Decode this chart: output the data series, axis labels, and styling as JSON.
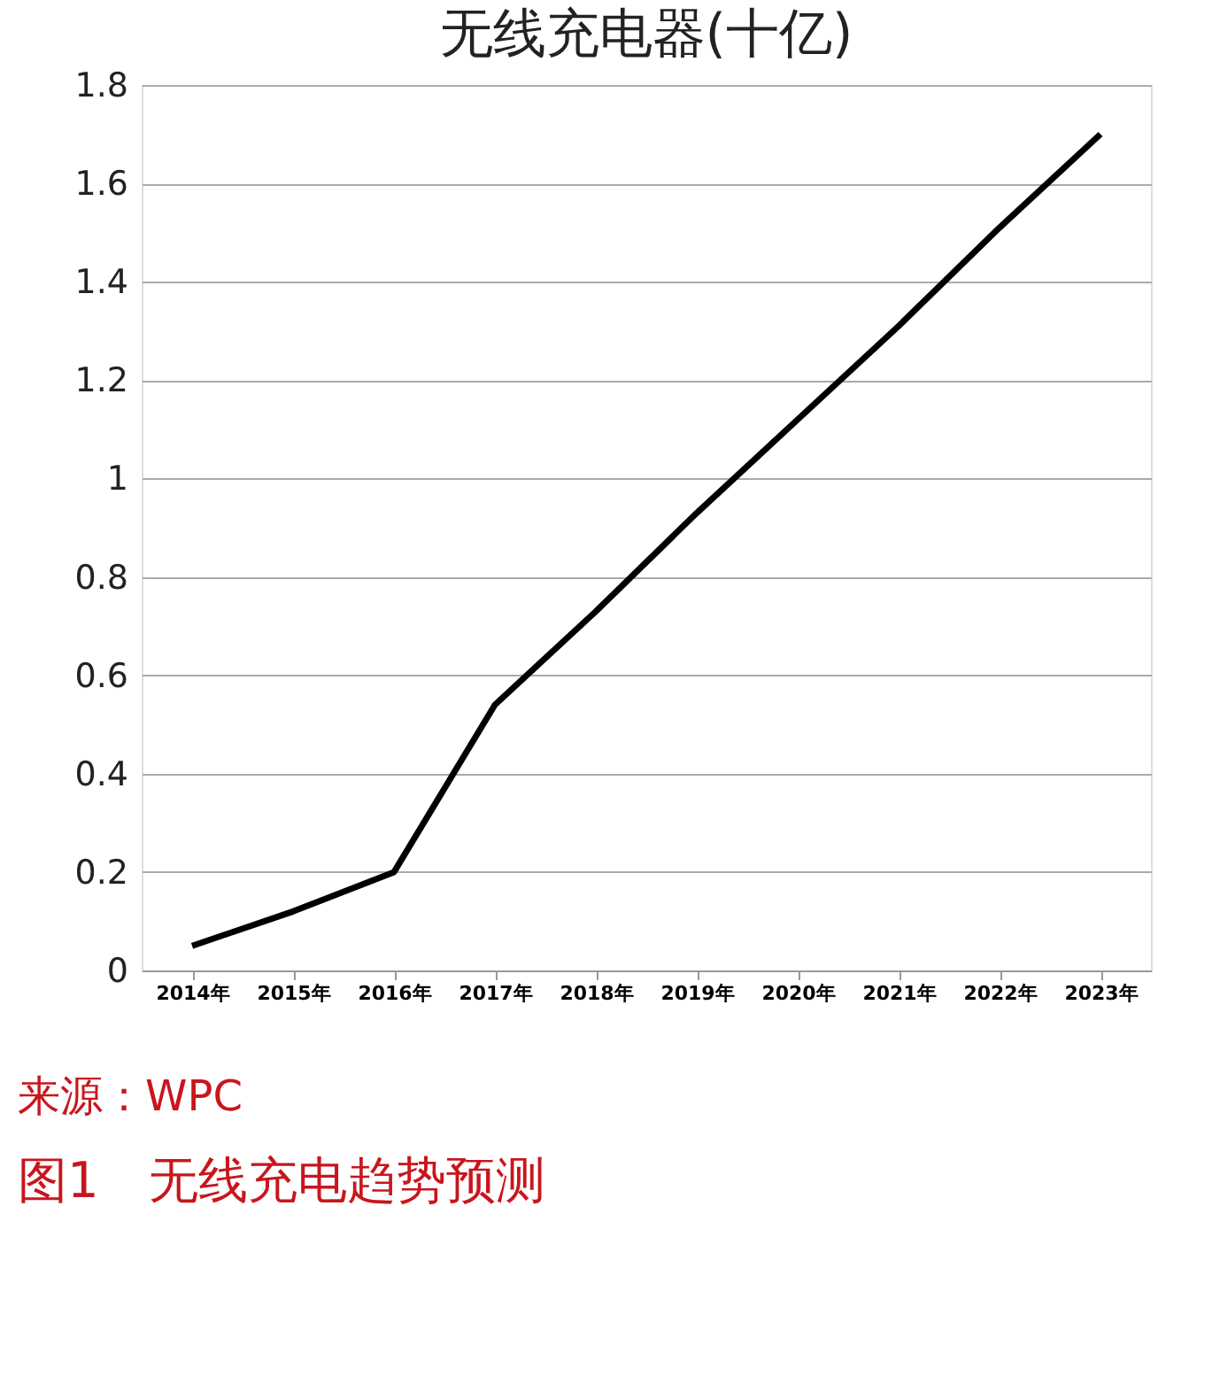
{
  "chart_data": {
    "type": "line",
    "title": "无线充电器(十亿)",
    "categories": [
      "2014年",
      "2015年",
      "2016年",
      "2017年",
      "2018年",
      "2019年",
      "2020年",
      "2021年",
      "2022年",
      "2023年"
    ],
    "series": [
      {
        "color": "#000000",
        "values": [
          0.05,
          0.12,
          0.2,
          0.54,
          0.73,
          0.93,
          1.12,
          1.31,
          1.51,
          1.7
        ]
      }
    ],
    "ylim": [
      0,
      1.8
    ],
    "yticks": [
      0,
      0.2,
      0.4,
      0.6,
      0.8,
      1,
      1.2,
      1.4,
      1.6,
      1.8
    ],
    "grid": "y",
    "marker": "none",
    "line_style": "solid",
    "annotations": [
      "来源：WPC",
      "图1　无线充电趋势预测"
    ]
  }
}
